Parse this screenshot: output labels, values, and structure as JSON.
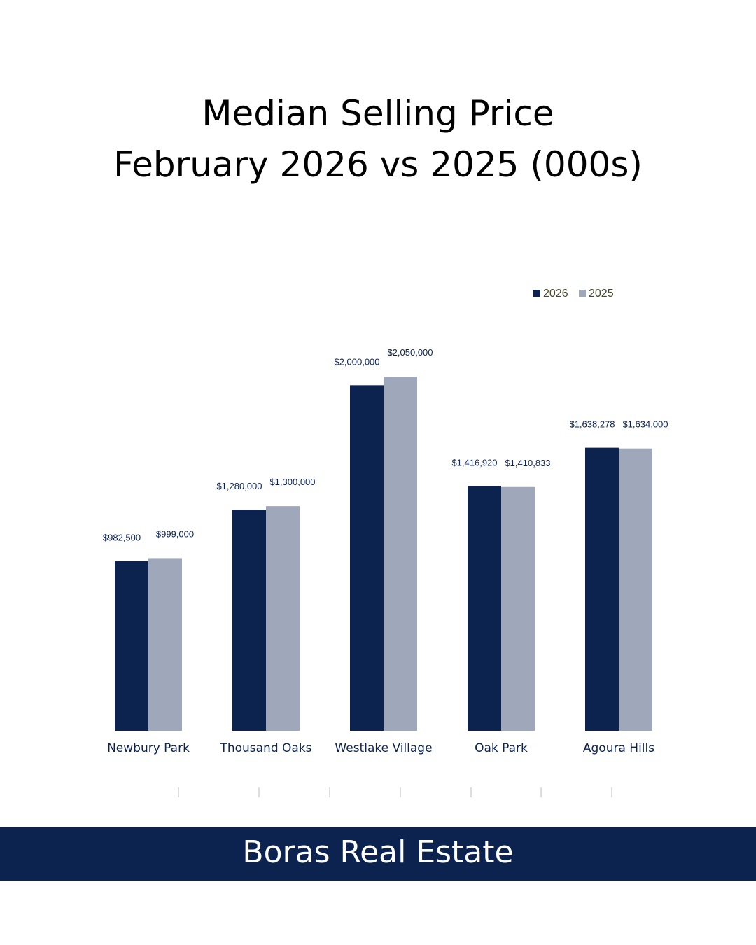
{
  "page": {
    "title_line1": "Median Selling Price",
    "title_line2": "February 2026 vs 2025 (000s)",
    "footer": "Boras Real Estate"
  },
  "colors": {
    "series_2026": "#0c2350",
    "series_2025": "#9fa8ba",
    "label_text": "#0c2350",
    "legend_text": "#4a4a2a",
    "footer_bg": "#0c2350"
  },
  "chart_data": {
    "type": "bar",
    "categories": [
      "Newbury Park",
      "Thousand Oaks",
      "Westlake Village",
      "Oak Park",
      "Agoura Hills"
    ],
    "series": [
      {
        "name": "2026",
        "values": [
          982500,
          1280000,
          2000000,
          1416920,
          1638278
        ],
        "labels": [
          "$982,500",
          "$1,280,000",
          "$2,000,000",
          "$1,416,920",
          "$1,638,278"
        ]
      },
      {
        "name": "2025",
        "values": [
          999000,
          1300000,
          2050000,
          1410833,
          1634000
        ],
        "labels": [
          "$999,000",
          "$1,300,000",
          "$2,050,000",
          "$1,410,833",
          "$1,634,000"
        ]
      }
    ],
    "ylim": [
      0,
      2050000
    ],
    "grid": false,
    "legend": "top-right"
  }
}
